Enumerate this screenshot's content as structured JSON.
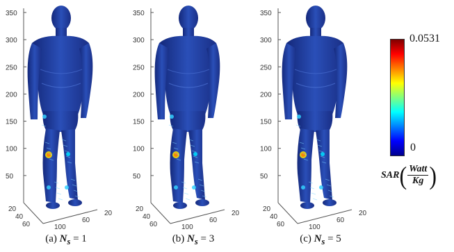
{
  "panels": [
    {
      "caption_prefix": "(a)",
      "ns_label": "N",
      "ns_sub": "s",
      "ns_eq": " = 1"
    },
    {
      "caption_prefix": "(b)",
      "ns_label": "N",
      "ns_sub": "s",
      "ns_eq": " = 3"
    },
    {
      "caption_prefix": "(c)",
      "ns_label": "N",
      "ns_sub": "s",
      "ns_eq": " = 5"
    }
  ],
  "axis": {
    "z_ticks": [
      "350",
      "300",
      "250",
      "200",
      "150",
      "100",
      "50"
    ],
    "x_ticks_left": [
      "20",
      "40",
      "60"
    ],
    "x_ticks_right": [
      "100",
      "60",
      "20"
    ]
  },
  "colorbar": {
    "max": "0.0531",
    "min": "0",
    "label_var": "SAR",
    "label_num": "Watt",
    "label_den": "Kg",
    "colors": [
      "#800000",
      "#ff0000",
      "#ff8000",
      "#ffff00",
      "#80ff80",
      "#00ffff",
      "#0080ff",
      "#0000ff",
      "#00008f"
    ]
  },
  "chart_data": {
    "type": "heatmap",
    "title": "",
    "series": [
      {
        "name": "(a) Ns = 1"
      },
      {
        "name": "(b) Ns = 3"
      },
      {
        "name": "(c) Ns = 5"
      }
    ],
    "zlim": [
      0,
      350
    ],
    "color_range": [
      0,
      0.0531
    ],
    "colorbar_label": "SAR (Watt/Kg)"
  }
}
